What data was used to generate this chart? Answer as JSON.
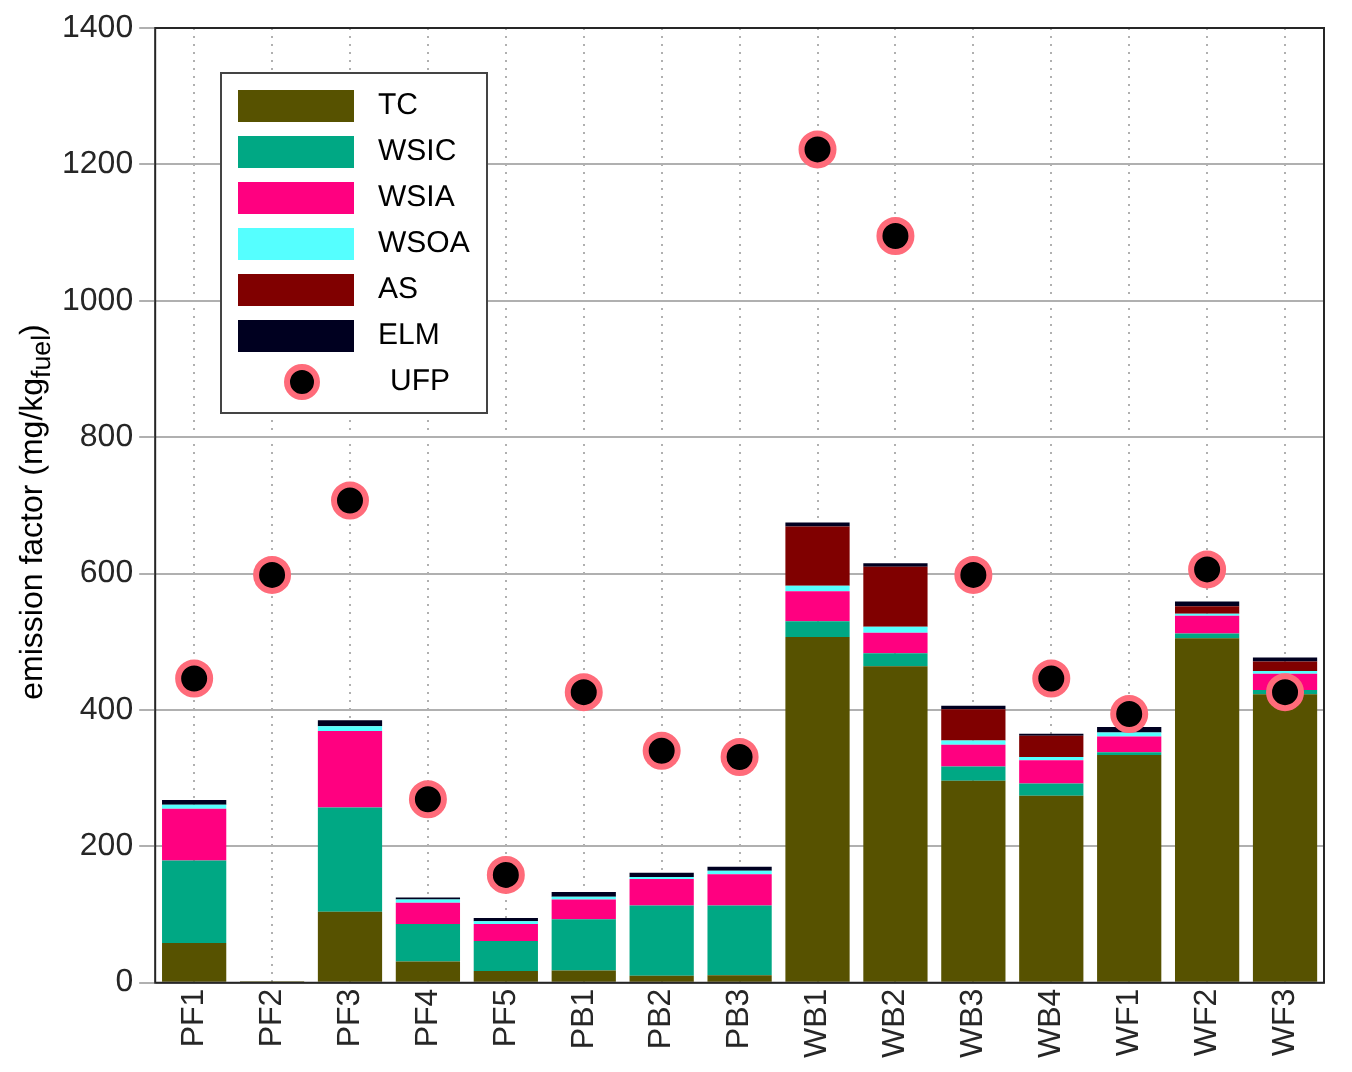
{
  "chart_data": {
    "type": "bar",
    "stacked": true,
    "ylabel": "emission factor (mg/kg$_{fuel}$)",
    "categories": [
      "PF1",
      "PF2",
      "PF3",
      "PF4",
      "PF5",
      "PB1",
      "PB2",
      "PB3",
      "WB1",
      "WB2",
      "WB3",
      "WB4",
      "WF1",
      "WF2",
      "WF3"
    ],
    "series": [
      {
        "name": "TC",
        "color": "#575200",
        "values": [
          58,
          2,
          104,
          31,
          17,
          18,
          10,
          11,
          507,
          464,
          296,
          274,
          334,
          505,
          423
        ]
      },
      {
        "name": "WSIC",
        "color": "#00a884",
        "values": [
          121,
          0,
          153,
          55,
          44,
          75,
          103,
          102,
          23,
          19,
          21,
          18,
          4,
          7,
          6
        ]
      },
      {
        "name": "WSIA",
        "color": "#ff0080",
        "values": [
          76,
          0,
          112,
          31,
          25,
          29,
          39,
          46,
          44,
          30,
          32,
          34,
          23,
          26,
          24
        ]
      },
      {
        "name": "WSOA",
        "color": "#55ffff",
        "values": [
          6,
          0,
          7,
          5,
          4,
          4,
          3,
          5,
          8,
          9,
          6,
          5,
          6,
          3,
          4
        ]
      },
      {
        "name": "AS",
        "color": "#800000",
        "values": [
          0,
          0,
          0,
          0,
          0,
          0,
          0,
          0,
          87,
          88,
          46,
          31,
          0,
          11,
          14
        ]
      },
      {
        "name": "ELM",
        "color": "#000020",
        "values": [
          7,
          0,
          9,
          3,
          5,
          7,
          6,
          6,
          6,
          5,
          5,
          3,
          8,
          7,
          6
        ]
      },
      {
        "name": "UFP",
        "type": "scatter",
        "color": "#000000",
        "x": [
          "PF1",
          "PF2",
          "PF3",
          "PF4",
          "PF5",
          "PB1",
          "PB2",
          "PB3",
          "WB1",
          "WB2",
          "WB3",
          "WB4",
          "WF1",
          "WF2",
          "WF3"
        ],
        "values": [
          446,
          598,
          707,
          269,
          158,
          426,
          340,
          331,
          1222,
          1095,
          598,
          446,
          394,
          606,
          426
        ]
      }
    ],
    "ylim": [
      0,
      1400
    ],
    "yticks": [
      0,
      200,
      400,
      600,
      800,
      1000,
      1200,
      1400
    ],
    "grid": true,
    "legend": "top left",
    "marker": "circle"
  }
}
